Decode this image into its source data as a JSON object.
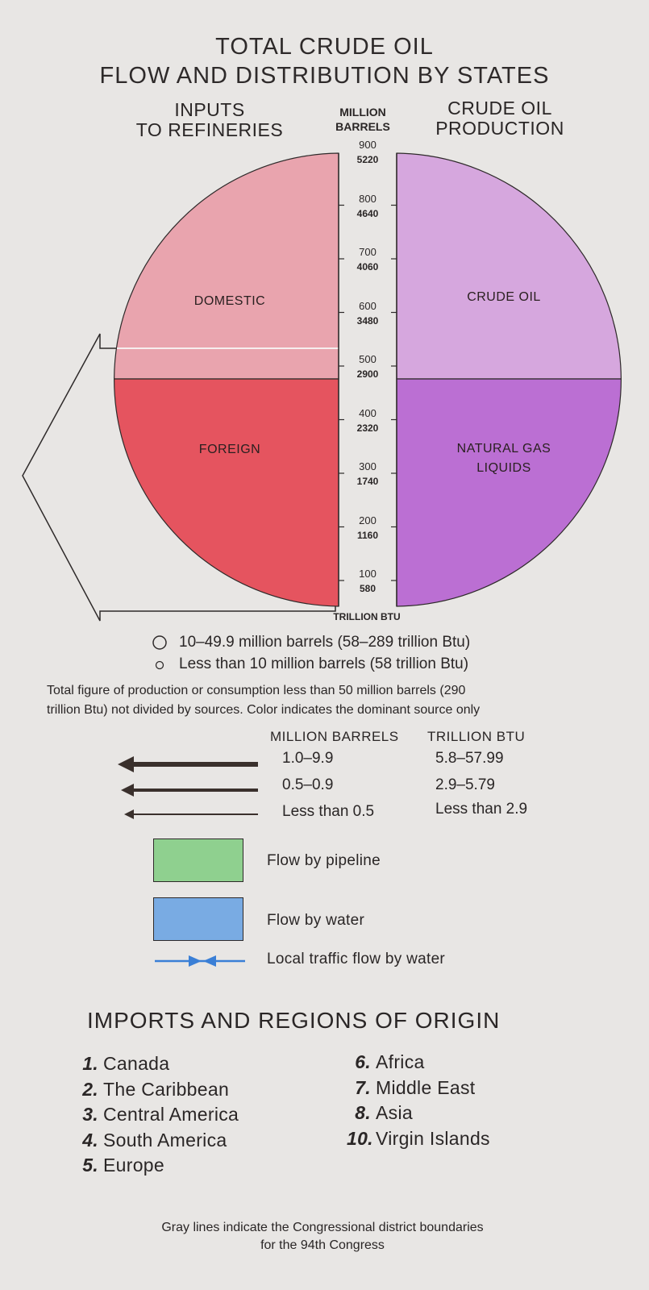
{
  "title": {
    "line1": "TOTAL CRUDE OIL",
    "line2": "FLOW AND DISTRIBUTION BY STATES"
  },
  "left_header": {
    "line1": "INPUTS",
    "line2": "TO REFINERIES"
  },
  "right_header": {
    "line1": "CRUDE OIL",
    "line2": "PRODUCTION"
  },
  "scale": {
    "head_line1": "MILLION",
    "head_line2": "BARRELS",
    "foot": "TRILLION BTU",
    "ticks": [
      {
        "barrels": "900",
        "btu": "5220"
      },
      {
        "barrels": "800",
        "btu": "4640"
      },
      {
        "barrels": "700",
        "btu": "4060"
      },
      {
        "barrels": "600",
        "btu": "3480"
      },
      {
        "barrels": "500",
        "btu": "2900"
      },
      {
        "barrels": "400",
        "btu": "2320"
      },
      {
        "barrels": "300",
        "btu": "1740"
      },
      {
        "barrels": "200",
        "btu": "1160"
      },
      {
        "barrels": "100",
        "btu": "580"
      }
    ]
  },
  "segments": {
    "domestic": "DOMESTIC",
    "foreign": "FOREIGN",
    "crude_oil": "CRUDE OIL",
    "ngl_line1": "NATURAL GAS",
    "ngl_line2": "LIQUIDS"
  },
  "colors": {
    "domestic": "#e9a4ae",
    "foreign": "#e5545f",
    "crude_oil": "#d6a7de",
    "ngl": "#bb6fd3",
    "pipeline": "#8fd08f",
    "water": "#79abe3",
    "local_water": "#3a7fd6",
    "arrow": "#3a302c"
  },
  "circle_legend": {
    "large": "10–49.9 million barrels (58–289 trillion Btu)",
    "small": "Less than 10 million barrels (58 trillion Btu)"
  },
  "note": {
    "line1": "Total figure of production or consumption less than 50 million barrels (290",
    "line2": "trillion Btu) not divided by sources.  Color indicates the dominant source only"
  },
  "flow_table": {
    "col_barrels": "MILLION  BARRELS",
    "col_btu": "TRILLION  BTU",
    "rows": [
      {
        "barrels": "1.0–9.9",
        "btu": "5.8–57.99"
      },
      {
        "barrels": "0.5–0.9",
        "btu": "2.9–5.79"
      },
      {
        "barrels": "Less than 0.5",
        "btu": "Less than 2.9"
      }
    ]
  },
  "legend": {
    "pipeline": "Flow by pipeline",
    "water": "Flow by water",
    "local": "Local traffic flow by water"
  },
  "imports": {
    "title": "IMPORTS AND REGIONS OF ORIGIN",
    "left": [
      {
        "num": "1.",
        "name": "Canada"
      },
      {
        "num": "2.",
        "name": "The Caribbean"
      },
      {
        "num": "3.",
        "name": "Central America"
      },
      {
        "num": "4.",
        "name": "South America"
      },
      {
        "num": "5.",
        "name": "Europe"
      }
    ],
    "right": [
      {
        "num": "6.",
        "name": "Africa"
      },
      {
        "num": "7.",
        "name": "Middle East"
      },
      {
        "num": "8.",
        "name": "Asia"
      },
      {
        "num": "10.",
        "name": "Virgin Islands"
      }
    ]
  },
  "footer": {
    "line1": "Gray lines indicate the Congressional district boundaries",
    "line2": "for the 94th Congress"
  }
}
